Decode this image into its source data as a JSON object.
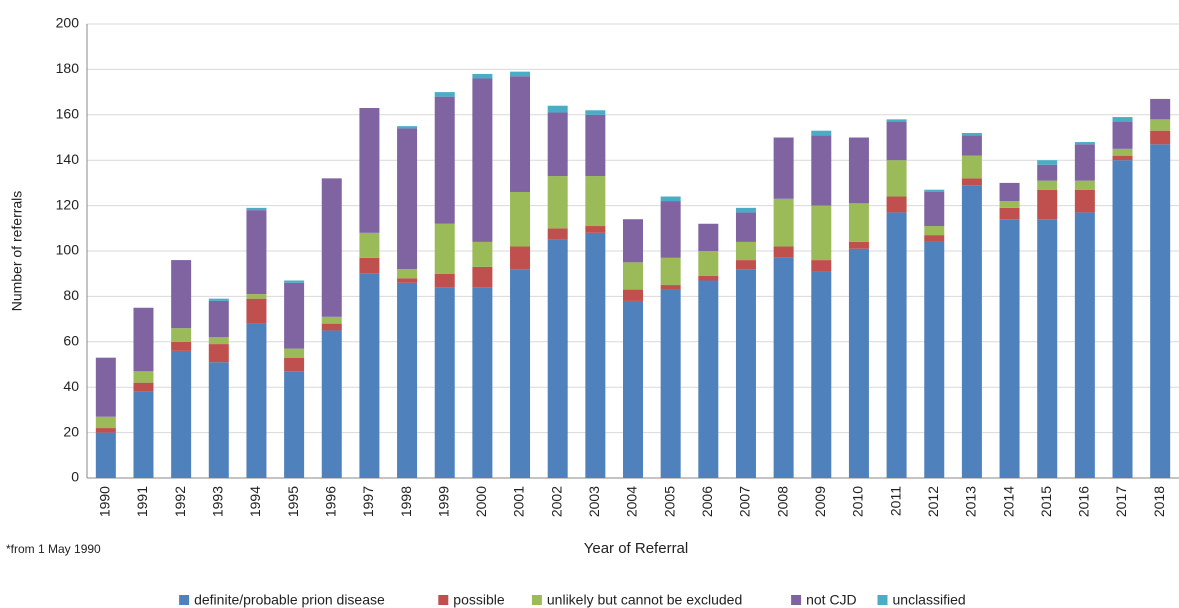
{
  "chart_data": {
    "type": "stacked_bar",
    "x_label": "Year of Referral",
    "y_label": "Number of referrals",
    "note": "*from 1 May 1990",
    "categories": [
      "1990",
      "1991",
      "1992",
      "1993",
      "1994",
      "1995",
      "1996",
      "1997",
      "1998",
      "1999",
      "2000",
      "2001",
      "2002",
      "2003",
      "2004",
      "2005",
      "2006",
      "2007",
      "2008",
      "2009",
      "2010",
      "2011",
      "2012",
      "2013",
      "2014",
      "2015",
      "2016",
      "2017",
      "2018"
    ],
    "series": [
      {
        "name": "definite/probable prion disease",
        "color": "#4f81bd",
        "values": [
          20,
          38,
          56,
          51,
          68,
          47,
          65,
          90,
          86,
          84,
          84,
          92,
          105,
          108,
          78,
          83,
          87,
          92,
          97,
          91,
          101,
          117,
          104,
          129,
          114,
          114,
          117,
          140,
          147
        ]
      },
      {
        "name": "possible",
        "color": "#c0504d",
        "values": [
          2,
          4,
          4,
          8,
          11,
          6,
          3,
          7,
          2,
          6,
          9,
          10,
          5,
          3,
          5,
          2,
          2,
          4,
          5,
          5,
          3,
          7,
          3,
          3,
          5,
          13,
          10,
          2,
          6
        ]
      },
      {
        "name": "unlikely but cannot be excluded",
        "color": "#9bbb59",
        "values": [
          5,
          5,
          6,
          3,
          2,
          4,
          3,
          11,
          4,
          22,
          11,
          24,
          23,
          22,
          12,
          12,
          11,
          8,
          21,
          24,
          17,
          16,
          4,
          10,
          3,
          4,
          4,
          3,
          5
        ]
      },
      {
        "name": "not CJD",
        "color": "#8064a2",
        "values": [
          26,
          28,
          30,
          16,
          37,
          29,
          61,
          55,
          62,
          56,
          72,
          51,
          28,
          27,
          19,
          25,
          12,
          13,
          27,
          31,
          29,
          17,
          15,
          9,
          8,
          7,
          16,
          12,
          9
        ]
      },
      {
        "name": "unclassified",
        "color": "#4bacc6",
        "values": [
          0,
          0,
          0,
          1,
          1,
          1,
          0,
          0,
          1,
          2,
          2,
          2,
          3,
          2,
          0,
          2,
          0,
          2,
          0,
          2,
          0,
          1,
          1,
          1,
          0,
          2,
          1,
          2,
          0
        ]
      }
    ],
    "ylim": [
      0,
      200
    ],
    "yticks": [
      0,
      20,
      40,
      60,
      80,
      100,
      120,
      140,
      160,
      180,
      200
    ],
    "grid": true,
    "legend": "bottom"
  }
}
